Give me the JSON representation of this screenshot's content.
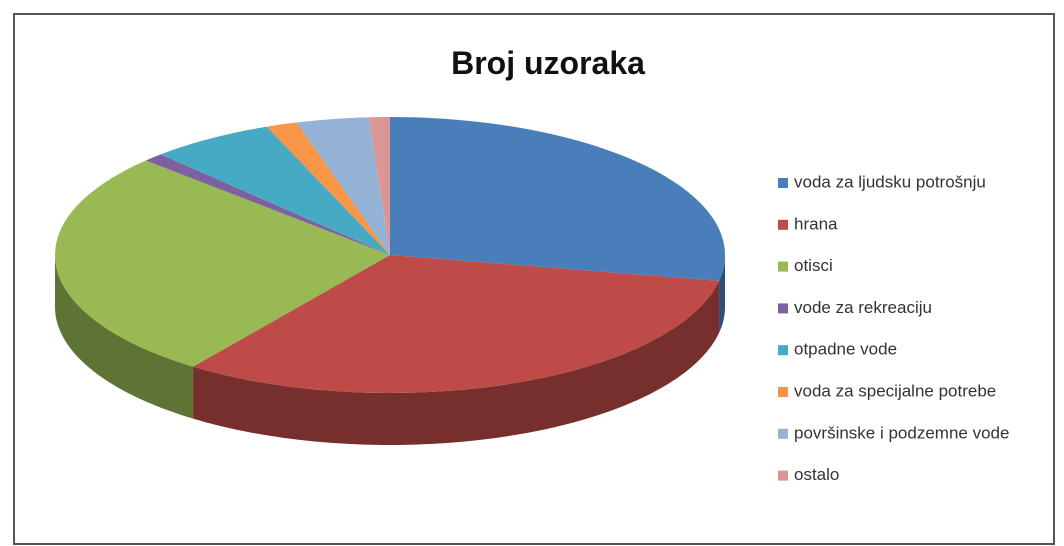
{
  "chart_data": {
    "type": "pie",
    "title": "Broj uzoraka",
    "categories": [
      "voda za ljudsku potrošnju",
      "hrana",
      "otisci",
      "vode za rekreaciju",
      "otpadne vode",
      "voda za specijalne potrebe",
      "površinske i podzemne vode",
      "ostalo"
    ],
    "values": [
      28,
      32,
      27,
      1,
      6,
      1.5,
      3.5,
      1
    ],
    "colors": [
      "#4a7ebb",
      "#be4b48",
      "#98b954",
      "#7d60a0",
      "#46aac5",
      "#f79646",
      "#95b3d7",
      "#d99694"
    ],
    "legend": "right"
  }
}
